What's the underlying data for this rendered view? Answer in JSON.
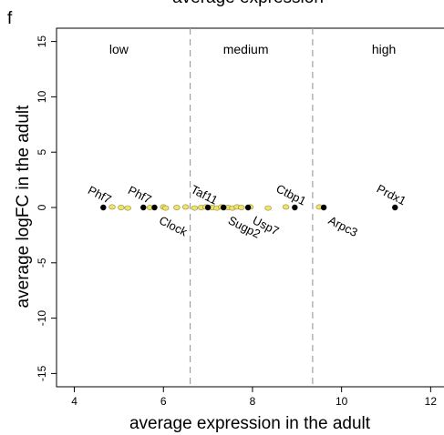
{
  "chart_data": {
    "type": "scatter",
    "panel_label": "f",
    "top_title_fragment": "average expression",
    "xlabel": "average expression in the adult",
    "ylabel": "average logFC in the adult",
    "xlim": [
      3.6,
      12.3
    ],
    "ylim": [
      -16.2,
      16.2
    ],
    "x_ticks": [
      4,
      6,
      8,
      10,
      12
    ],
    "y_ticks": [
      -15,
      -10,
      -5,
      0,
      5,
      10,
      15
    ],
    "grid": false,
    "region_dividers": [
      6.6,
      9.35
    ],
    "regions": [
      {
        "label": "low",
        "x": 5.0
      },
      {
        "label": "medium",
        "x": 7.85
      },
      {
        "label": "high",
        "x": 10.95
      }
    ],
    "series": [
      {
        "color": "#f0e26a",
        "points": [
          {
            "x": 4.85,
            "y": 0.05
          },
          {
            "x": 5.05,
            "y": 0.0
          },
          {
            "x": 5.2,
            "y": -0.05
          },
          {
            "x": 5.7,
            "y": 0.0
          },
          {
            "x": 6.0,
            "y": 0.05
          },
          {
            "x": 6.05,
            "y": -0.05
          },
          {
            "x": 6.3,
            "y": 0.0
          },
          {
            "x": 6.5,
            "y": 0.05
          },
          {
            "x": 6.7,
            "y": -0.05
          },
          {
            "x": 6.85,
            "y": 0.0
          },
          {
            "x": 6.95,
            "y": 0.05
          },
          {
            "x": 7.1,
            "y": 0.0
          },
          {
            "x": 7.2,
            "y": -0.05
          },
          {
            "x": 7.3,
            "y": 0.05
          },
          {
            "x": 7.45,
            "y": 0.0
          },
          {
            "x": 7.55,
            "y": -0.05
          },
          {
            "x": 7.65,
            "y": 0.05
          },
          {
            "x": 7.75,
            "y": 0.0
          },
          {
            "x": 7.95,
            "y": 0.05
          },
          {
            "x": 8.35,
            "y": -0.05
          },
          {
            "x": 8.75,
            "y": 0.05
          },
          {
            "x": 9.5,
            "y": 0.05
          }
        ]
      },
      {
        "color": "#000000",
        "points": [
          {
            "x": 4.65,
            "y": 0.0,
            "label": "Phf7",
            "label_pos": "above"
          },
          {
            "x": 5.55,
            "y": 0.0,
            "label": "Phf7",
            "label_pos": "above"
          },
          {
            "x": 5.8,
            "y": 0.0,
            "label": "Clock",
            "label_pos": "below"
          },
          {
            "x": 7.0,
            "y": 0.0,
            "label": "Taf11",
            "label_pos": "above"
          },
          {
            "x": 7.35,
            "y": 0.0,
            "label": "Sugp2",
            "label_pos": "below"
          },
          {
            "x": 7.9,
            "y": 0.0,
            "label": "Usp7",
            "label_pos": "below"
          },
          {
            "x": 8.95,
            "y": 0.0,
            "label": "Ctbp1",
            "label_pos": "above"
          },
          {
            "x": 9.6,
            "y": 0.0,
            "label": "Arpc3",
            "label_pos": "below"
          },
          {
            "x": 11.2,
            "y": 0.0,
            "label": "Prdx1",
            "label_pos": "above"
          }
        ]
      }
    ]
  }
}
